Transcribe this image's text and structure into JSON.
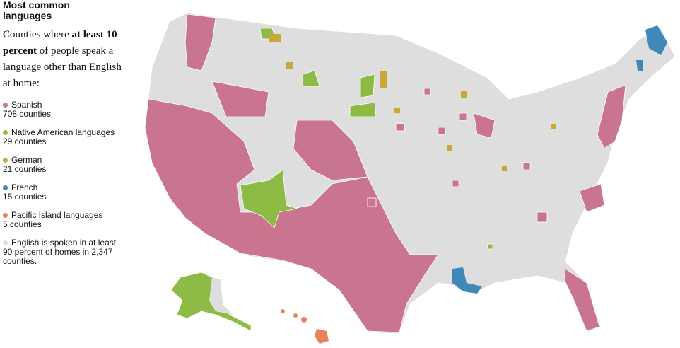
{
  "title": "Most common languages",
  "description": [
    "Counties where ",
    "at least 10 percent",
    " of people speak a language other than English at home:"
  ],
  "legend": [
    {
      "label": "Spanish",
      "count": "708 counties",
      "color": "#c9758f"
    },
    {
      "label": "Native American languages",
      "count": "29 counties",
      "color": "#8dbb45"
    },
    {
      "label": "German",
      "count": "21 counties",
      "color": "#c9a83a"
    },
    {
      "label": "French",
      "count": "15 counties",
      "color": "#3f88b8"
    },
    {
      "label": "Pacific Island languages",
      "count": "5 counties",
      "color": "#e8825a"
    },
    {
      "label": "English is spoken in at least 90 percent of homes in 2,347 counties.",
      "color": "#dedede"
    }
  ]
}
